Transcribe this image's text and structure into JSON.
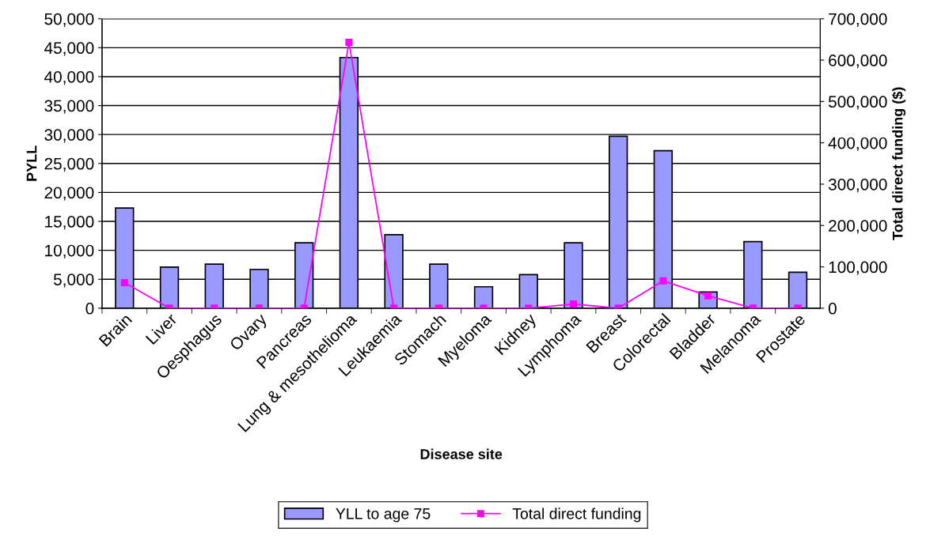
{
  "chart_data": {
    "type": "bar",
    "xlabel": "Disease site",
    "ylabel": "PYLL",
    "y2label": "Total direct funding ($)",
    "categories": [
      "Brain",
      "Liver",
      "Oesphagus",
      "Ovary",
      "Pancreas",
      "Lung & mesothelioma",
      "Leukaemia",
      "Stomach",
      "Myeloma",
      "Kidney",
      "Lymphoma",
      "Breast",
      "Colorectal",
      "Bladder",
      "Melanoma",
      "Prostate"
    ],
    "series": [
      {
        "name": "YLL to age 75",
        "color": "#9999ff",
        "values": [
          17300,
          7100,
          7600,
          6700,
          11300,
          43300,
          12700,
          7600,
          3700,
          5800,
          11300,
          29700,
          27200,
          2800,
          11500,
          6200
        ]
      },
      {
        "name": "Total direct funding",
        "type": "line",
        "axis": "y2",
        "color": "#ff00ff",
        "marker": "square",
        "values": [
          62000,
          0,
          0,
          0,
          0,
          643000,
          0,
          0,
          0,
          0,
          10000,
          0,
          66000,
          30000,
          0,
          0
        ]
      }
    ],
    "ylim": [
      0,
      50000
    ],
    "yticks": [
      {
        "value": 0,
        "label": "0"
      },
      {
        "value": 5000,
        "label": "5,000"
      },
      {
        "value": 10000,
        "label": "10,000"
      },
      {
        "value": 15000,
        "label": "15,000"
      },
      {
        "value": 20000,
        "label": "20,000"
      },
      {
        "value": 25000,
        "label": "25,000"
      },
      {
        "value": 30000,
        "label": "30,000"
      },
      {
        "value": 35000,
        "label": "35,000"
      },
      {
        "value": 40000,
        "label": "40,000"
      },
      {
        "value": 45000,
        "label": "45,000"
      },
      {
        "value": 50000,
        "label": "50,000"
      }
    ],
    "y2lim": [
      0,
      700000
    ],
    "y2ticks": [
      {
        "value": 0,
        "label": "0"
      },
      {
        "value": 100000,
        "label": "100,000"
      },
      {
        "value": 200000,
        "label": "200,000"
      },
      {
        "value": 300000,
        "label": "300,000"
      },
      {
        "value": 400000,
        "label": "400,000"
      },
      {
        "value": 500000,
        "label": "500,000"
      },
      {
        "value": 600000,
        "label": "600,000"
      },
      {
        "value": 700000,
        "label": "700,000"
      }
    ],
    "grid": "y",
    "legend": "bottom"
  }
}
